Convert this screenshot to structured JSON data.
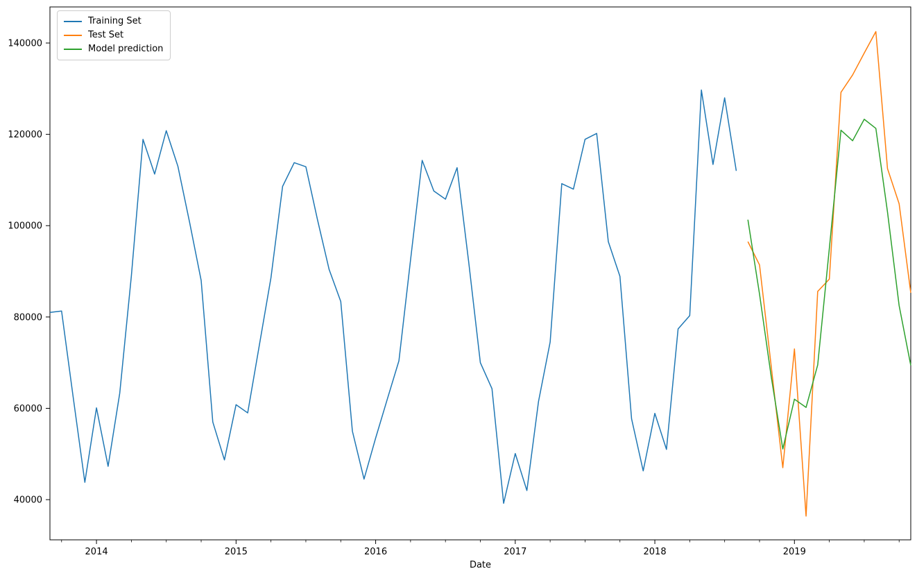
{
  "chart_data": {
    "type": "line",
    "title": "",
    "xlabel": "Date",
    "ylabel": "",
    "grid": false,
    "x_axis": {
      "start_month": "2013-09",
      "end_month": "2019-11",
      "total_months": 75
    },
    "ylim": [
      31200,
      147900
    ],
    "y_ticks": [
      {
        "value": 40000,
        "label": "40000"
      },
      {
        "value": 60000,
        "label": "60000"
      },
      {
        "value": 80000,
        "label": "80000"
      },
      {
        "value": 100000,
        "label": "100000"
      },
      {
        "value": 120000,
        "label": "120000"
      },
      {
        "value": 140000,
        "label": "140000"
      }
    ],
    "x_major_ticks": [
      {
        "month_index": 4,
        "label": "2014"
      },
      {
        "month_index": 16,
        "label": "2015"
      },
      {
        "month_index": 28,
        "label": "2016"
      },
      {
        "month_index": 40,
        "label": "2017"
      },
      {
        "month_index": 52,
        "label": "2018"
      },
      {
        "month_index": 64,
        "label": "2019"
      }
    ],
    "x_minor_tick_indices": [
      1,
      7,
      10,
      13,
      19,
      22,
      25,
      31,
      34,
      37,
      43,
      46,
      49,
      55,
      58,
      61,
      67,
      70,
      73
    ],
    "legend": {
      "position": "upper-left",
      "entries": [
        "Training Set",
        "Test Set",
        "Model prediction"
      ]
    },
    "series": [
      {
        "name": "Training Set",
        "color": "#1f77b4",
        "start_month": "2013-09",
        "start_index": 0,
        "values": [
          81000,
          81300,
          62400,
          43800,
          60100,
          47300,
          63300,
          89000,
          118900,
          111300,
          120800,
          113000,
          100800,
          88000,
          57000,
          48700,
          60800,
          59000,
          73800,
          88600,
          108600,
          113800,
          112900,
          101300,
          90400,
          83400,
          55000,
          44500,
          53500,
          62000,
          70400,
          92500,
          114300,
          107600,
          105800,
          112700,
          92000,
          70000,
          64300,
          39200,
          50100,
          42000,
          61500,
          74500,
          109200,
          108000,
          118900,
          120200,
          96500,
          88900,
          57700,
          46300,
          58900,
          51000,
          77400,
          80300,
          129700,
          113400,
          128000,
          112000
        ]
      },
      {
        "name": "Test Set",
        "color": "#ff7f0e",
        "start_month": "2018-09",
        "start_index": 60,
        "values": [
          96500,
          91400,
          69300,
          47000,
          73000,
          36400,
          85600,
          88300,
          129200,
          133000,
          137800,
          142500,
          112500,
          104800,
          85300
        ]
      },
      {
        "name": "Model prediction",
        "color": "#2ca02c",
        "start_month": "2018-09",
        "start_index": 60,
        "values": [
          101300,
          85000,
          67000,
          51100,
          62000,
          60200,
          69500,
          95000,
          120900,
          118600,
          123300,
          121300,
          103000,
          82500,
          69400
        ]
      }
    ]
  }
}
